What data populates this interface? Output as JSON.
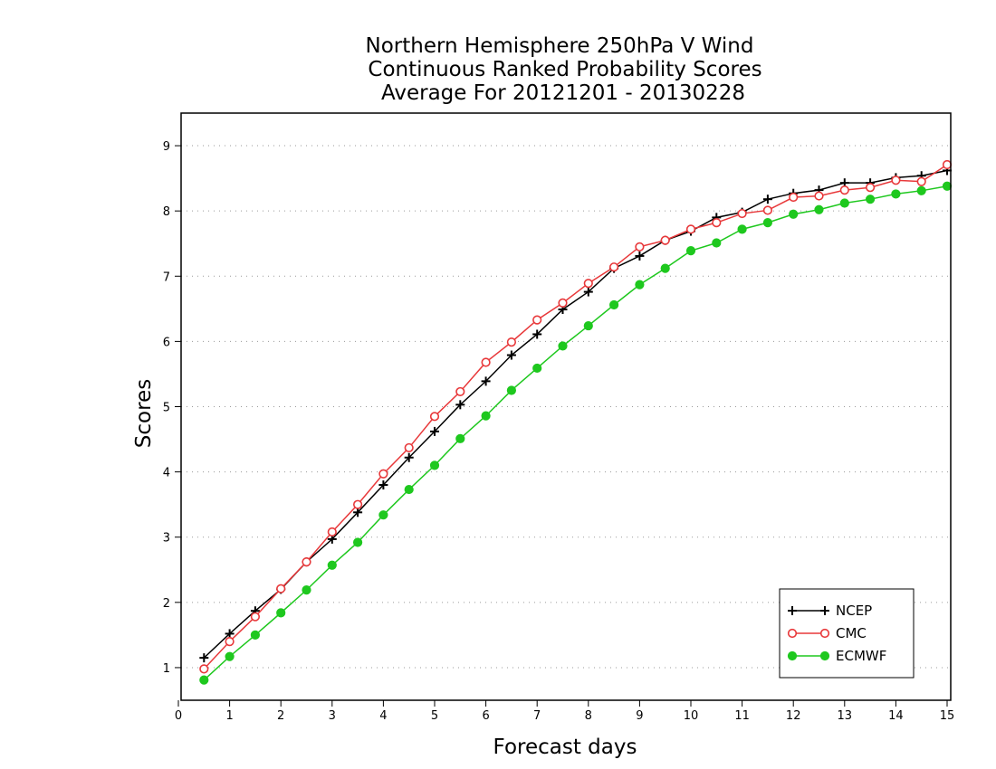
{
  "chart_data": {
    "type": "line",
    "title": [
      "Northern Hemisphere 250hPa V Wind",
      "Continuous Ranked Probability Scores",
      "Average For 20121201 - 20130228"
    ],
    "xlabel": "Forecast days",
    "ylabel": "Scores",
    "xlim": [
      0,
      15
    ],
    "ylim": [
      0.5,
      9.5
    ],
    "xticks": [
      0,
      1,
      2,
      3,
      4,
      5,
      6,
      7,
      8,
      9,
      10,
      11,
      12,
      13,
      14,
      15
    ],
    "yticks": [
      1,
      2,
      3,
      4,
      5,
      6,
      7,
      8,
      9
    ],
    "grid": "horizontal dotted",
    "legend_position": "bottom-right",
    "x": [
      0.5,
      1,
      1.5,
      2,
      2.5,
      3,
      3.5,
      4,
      4.5,
      5,
      5.5,
      6,
      6.5,
      7,
      7.5,
      8,
      8.5,
      9,
      9.5,
      10,
      10.5,
      11,
      11.5,
      12,
      12.5,
      13,
      13.5,
      14,
      14.5,
      15
    ],
    "series": [
      {
        "name": "NCEP",
        "color": "#000000",
        "marker": "plus",
        "values": [
          1.15,
          1.52,
          1.87,
          2.2,
          2.62,
          2.97,
          3.38,
          3.8,
          4.22,
          4.62,
          5.03,
          5.39,
          5.79,
          6.11,
          6.49,
          6.76,
          7.12,
          7.31,
          7.55,
          7.69,
          7.9,
          7.98,
          8.18,
          8.27,
          8.32,
          8.43,
          8.43,
          8.51,
          8.54,
          8.62
        ]
      },
      {
        "name": "CMC",
        "color": "#e8383a",
        "marker": "open-circle",
        "values": [
          0.98,
          1.4,
          1.78,
          2.21,
          2.62,
          3.08,
          3.5,
          3.97,
          4.37,
          4.85,
          5.23,
          5.68,
          5.99,
          6.33,
          6.59,
          6.89,
          7.14,
          7.45,
          7.55,
          7.72,
          7.82,
          7.96,
          8.01,
          8.21,
          8.23,
          8.32,
          8.36,
          8.47,
          8.45,
          8.71
        ]
      },
      {
        "name": "ECMWF",
        "color": "#1ec81e",
        "marker": "filled-circle",
        "values": [
          0.81,
          1.17,
          1.5,
          1.84,
          2.19,
          2.57,
          2.92,
          3.34,
          3.73,
          4.1,
          4.51,
          4.86,
          5.25,
          5.59,
          5.93,
          6.24,
          6.56,
          6.87,
          7.12,
          7.39,
          7.51,
          7.72,
          7.82,
          7.95,
          8.02,
          8.12,
          8.18,
          8.26,
          8.31,
          8.38
        ]
      }
    ]
  }
}
